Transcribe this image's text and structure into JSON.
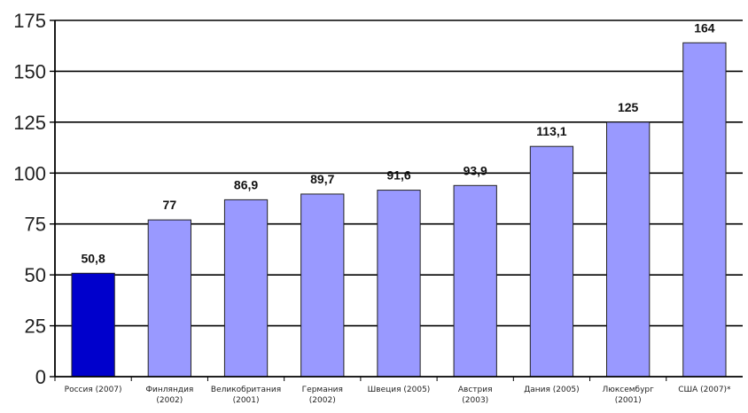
{
  "chart_data": {
    "type": "bar",
    "categories": [
      "Россия (2007)",
      "Финляндия (2002)",
      "Великобритания (2001)",
      "Германия (2002)",
      "Швеция (2005)",
      "Австрия (2003)",
      "Дания (2005)",
      "Люксембург (2001)",
      "США (2007)*"
    ],
    "category_lines": [
      [
        "Россия (2007)"
      ],
      [
        "Финляндия",
        "(2002)"
      ],
      [
        "Великобритания",
        "(2001)"
      ],
      [
        "Германия",
        "(2002)"
      ],
      [
        "Швеция (2005)"
      ],
      [
        "Австрия",
        "(2003)"
      ],
      [
        "Дания (2005)"
      ],
      [
        "Люксембург",
        "(2001)"
      ],
      [
        "США (2007)*"
      ]
    ],
    "values": [
      50.8,
      77,
      86.9,
      89.7,
      91.6,
      93.9,
      113.1,
      125,
      164
    ],
    "value_labels": [
      "50,8",
      "77",
      "86,9",
      "89,7",
      "91,6",
      "93,9",
      "113,1",
      "125",
      "164"
    ],
    "highlight_index": 0,
    "colors": {
      "bar": "#9999ff",
      "bar_highlight": "#0000cc",
      "bar_edge": "#222222",
      "gridline": "#000000",
      "axis": "#000000"
    },
    "ylim": [
      0,
      175
    ],
    "yticks": [
      0,
      25,
      50,
      75,
      100,
      125,
      150,
      175
    ],
    "grid": true,
    "legend": "none",
    "title": "",
    "xlabel": "",
    "ylabel": ""
  }
}
